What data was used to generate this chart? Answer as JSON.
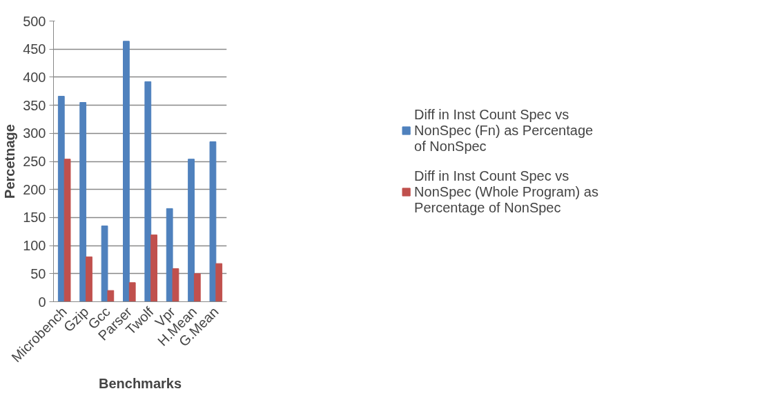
{
  "chart_data": {
    "type": "bar",
    "xlabel": "Benchmarks",
    "ylabel": "Percetnage",
    "categories": [
      "Microbench",
      "Gzip",
      "Gcc",
      "Parser",
      "Twolf",
      "Vpr",
      "H.Mean",
      "G.Mean"
    ],
    "series": [
      {
        "name": "Diff in Inst Count Spec vs NonSpec (Fn) as Percentage of NonSpec",
        "color": "#4f81bd",
        "values": [
          366,
          355,
          135,
          464,
          392,
          166,
          254,
          285
        ]
      },
      {
        "name": "Diff in Inst Count Spec vs NonSpec (Whole Program) as Percentage of NonSpec",
        "color": "#c0504d",
        "values": [
          254,
          80,
          20,
          34,
          119,
          59,
          50,
          68
        ]
      }
    ],
    "ylim": [
      0,
      500
    ],
    "yticks": [
      0,
      50,
      100,
      150,
      200,
      250,
      300,
      350,
      400,
      450,
      500
    ],
    "grid": "y",
    "legend": "right"
  }
}
